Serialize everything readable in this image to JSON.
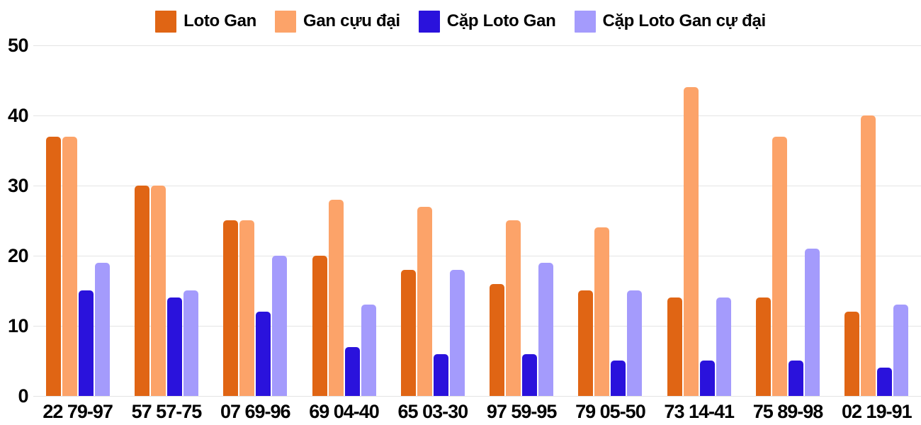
{
  "chart_data": {
    "type": "bar",
    "title": "",
    "xlabel": "",
    "ylabel": "",
    "categories": [
      "22 79-97",
      "57 57-75",
      "07 69-96",
      "69 04-40",
      "65 03-30",
      "97 59-95",
      "79 05-50",
      "73 14-41",
      "75 89-98",
      "02 19-91"
    ],
    "series": [
      {
        "name": "Loto Gan",
        "color": "#e06514",
        "values": [
          37,
          30,
          25,
          20,
          18,
          16,
          15,
          14,
          14,
          12
        ]
      },
      {
        "name": "Gan cựu đại",
        "color": "#fca369",
        "values": [
          37,
          30,
          25,
          28,
          27,
          25,
          24,
          44,
          37,
          40
        ]
      },
      {
        "name": "Cặp Loto Gan",
        "color": "#2a12dc",
        "values": [
          15,
          14,
          12,
          7,
          6,
          6,
          5,
          5,
          5,
          4
        ]
      },
      {
        "name": "Cặp Loto Gan cự đại",
        "color": "#a49bfc",
        "values": [
          19,
          15,
          20,
          13,
          18,
          19,
          15,
          14,
          21,
          13
        ]
      }
    ],
    "ylim": [
      0,
      50
    ],
    "yticks": [
      0,
      10,
      20,
      30,
      40,
      50
    ],
    "grid": true,
    "legend_position": "top"
  },
  "colors": {
    "background": "#ffffff",
    "gridline": "#e4e4e4",
    "axis_text": "#000000",
    "legend_text": "#000000"
  }
}
